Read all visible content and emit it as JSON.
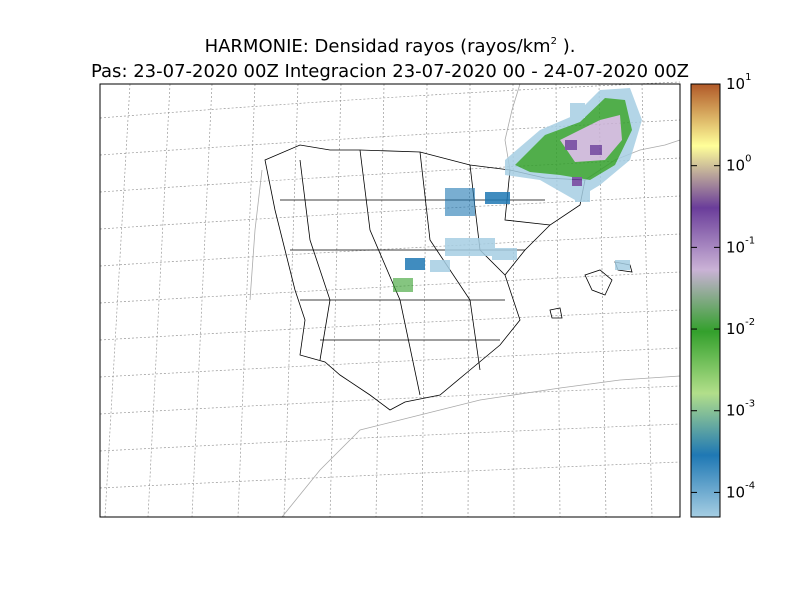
{
  "header": {
    "title_line1": {
      "text": "HARMONIE: Densidad rayos  (rayos/km",
      "superscript": "2",
      "tail": " )."
    },
    "title_line2": "Pas: 23-07-2020 00Z Integracion 23-07-2020 00 - 24-07-2020 00Z"
  },
  "colorbar": {
    "scale": "log",
    "range": [
      5e-05,
      10
    ],
    "colors": [
      "#a6cee3",
      "#1f78b4",
      "#b2df8a",
      "#33a02c",
      "#cab2d6",
      "#6a3d9a",
      "#ffff99",
      "#b15928"
    ],
    "ticks": [
      {
        "value": 10,
        "base": "10",
        "exponent": "1"
      },
      {
        "value": 1,
        "base": "10",
        "exponent": "0"
      },
      {
        "value": 0.1,
        "base": "10",
        "exponent": "-1"
      },
      {
        "value": 0.01,
        "base": "10",
        "exponent": "-2"
      },
      {
        "value": 0.001,
        "base": "10",
        "exponent": "-3"
      },
      {
        "value": 0.0001,
        "base": "10",
        "exponent": "-4"
      }
    ]
  }
}
